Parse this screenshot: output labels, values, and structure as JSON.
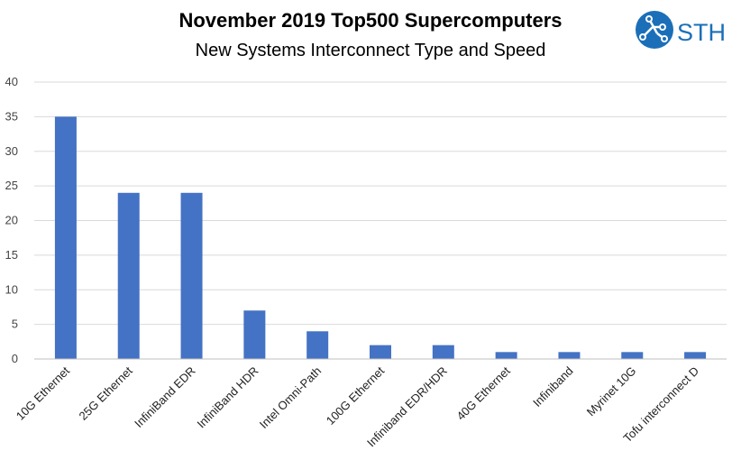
{
  "chart_data": {
    "type": "bar",
    "title": "November 2019 Top500 Supercomputers",
    "subtitle": "New Systems Interconnect Type and Speed",
    "categories": [
      "10G Ethernet",
      "25G Ethernet",
      "InfiniBand EDR",
      "InfiniBand HDR",
      "Intel Omni-Path",
      "100G Ethernet",
      "Infiniband EDR/HDR",
      "40G Ethernet",
      "Infiniband",
      "Myrinet 10G",
      "Tofu interconnect D"
    ],
    "values": [
      35,
      24,
      24,
      7,
      4,
      2,
      2,
      1,
      1,
      1,
      1
    ],
    "xlabel": "",
    "ylabel": "",
    "ylim": [
      0,
      40
    ],
    "yticks": [
      0,
      5,
      10,
      15,
      20,
      25,
      30,
      35,
      40
    ],
    "grid": true,
    "bar_color": "#4472C4"
  },
  "logo": {
    "text": "STH",
    "icon": "circuit-icon",
    "color": "#1B6FB8"
  }
}
